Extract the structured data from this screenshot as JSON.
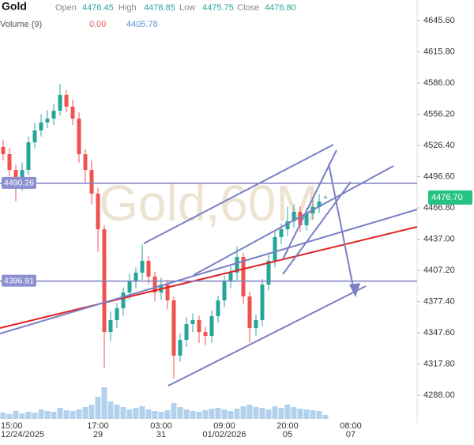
{
  "header": {
    "title": "Gold",
    "readout": [
      {
        "label": "Open",
        "value": "4476.45"
      },
      {
        "label": "High",
        "value": "4478.85"
      },
      {
        "label": "Low",
        "value": "4475.75"
      },
      {
        "label": "Close",
        "value": "4476.80"
      }
    ],
    "volume_label": "Volume (9)",
    "volume_values": [
      "0.00",
      "4405.78"
    ]
  },
  "chart_data": {
    "type": "candlestick",
    "watermark": "Gold,60M",
    "categories": [
      null,
      "15:00",
      null,
      null,
      null,
      null,
      null,
      null,
      null,
      null,
      null,
      null,
      null,
      null,
      null,
      "17:00",
      null,
      null,
      null,
      null,
      null,
      null,
      null,
      null,
      null,
      "03:00",
      null,
      null,
      null,
      null,
      null,
      null,
      null,
      null,
      null,
      "09:00",
      null,
      null,
      null,
      null,
      null,
      null,
      null,
      null,
      null,
      "20:00",
      null,
      null,
      null,
      null,
      null,
      null,
      null,
      null,
      null,
      "08:00",
      null,
      null,
      null,
      null,
      null,
      null,
      null,
      null,
      null,
      null
    ],
    "date_labels": [
      null,
      "12/24/2025",
      null,
      null,
      null,
      null,
      null,
      null,
      null,
      null,
      null,
      null,
      null,
      null,
      null,
      "29",
      null,
      null,
      null,
      null,
      null,
      null,
      null,
      null,
      null,
      "31",
      null,
      null,
      null,
      null,
      null,
      null,
      null,
      null,
      null,
      "01/02/2026",
      null,
      null,
      null,
      null,
      null,
      null,
      null,
      null,
      null,
      "05",
      null,
      null,
      null,
      null,
      null,
      null,
      null,
      null,
      null,
      "07",
      null,
      null,
      null,
      null,
      null,
      null,
      null,
      null,
      null,
      null
    ],
    "open": [
      4525,
      4518.1,
      4503,
      4487.9,
      4503,
      4529.4,
      4540.7,
      4548.3,
      4552,
      4559.6,
      4574.7,
      4563.4,
      4552,
      4518,
      4503,
      4480.4,
      4446.4,
      4348.3,
      4359.7,
      4371,
      4386,
      4397.4,
      4405,
      4416.3,
      4401.2,
      4386,
      4393.6,
      4378.5,
      4325.7,
      4340.8,
      4355.9,
      4359.7,
      4348.3,
      4344.6,
      4363.4,
      4378.5,
      4397.4,
      4405,
      4420,
      4382.3,
      4352.1,
      4359.7,
      4393.6,
      4416.3,
      4438.9,
      4446.4,
      4454,
      4463,
      4450.2,
      4461.5,
      4467.6,
      4476.45,
      null,
      null,
      null,
      null,
      null,
      null,
      null,
      null,
      null,
      null,
      null,
      null,
      null,
      null
    ],
    "high": [
      4532,
      4524,
      4508,
      4510,
      4535,
      4548,
      4556,
      4560,
      4566,
      4585,
      4579,
      4570,
      4558,
      4523,
      4512,
      4486,
      4450,
      4368,
      4376,
      4391,
      4404,
      4410,
      4432,
      4421,
      4406,
      4400,
      4398,
      4382,
      4347,
      4362,
      4366,
      4364,
      4353,
      4369,
      4383,
      4402,
      4411,
      4430,
      4424,
      4387,
      4365,
      4399,
      4422,
      4444,
      4452,
      4468,
      4470,
      4468,
      4467,
      4474,
      4480,
      4478.85,
      null,
      null,
      null,
      null,
      null,
      null,
      null,
      null,
      null,
      null,
      null,
      null,
      null,
      null
    ],
    "low": [
      4512,
      4497,
      4473,
      4483,
      4498,
      4524,
      4535,
      4543,
      4546,
      4555,
      4558,
      4546,
      4510,
      4490,
      4470,
      4425,
      4314,
      4340,
      4352,
      4364,
      4379,
      4390,
      4398,
      4394,
      4378,
      4379,
      4370,
      4304,
      4320,
      4334,
      4348,
      4338,
      4336,
      4338,
      4357,
      4372,
      4390,
      4398,
      4375,
      4338,
      4345,
      4354,
      4388,
      4410,
      4432,
      4440,
      4448,
      4444,
      4445,
      4456,
      4462,
      4475.75,
      null,
      null,
      null,
      null,
      null,
      null,
      null,
      null,
      null,
      null,
      null,
      null,
      null,
      null
    ],
    "close": [
      4518.1,
      4503,
      4487.9,
      4503,
      4529.4,
      4540.7,
      4548.3,
      4552,
      4559.6,
      4574.7,
      4563.4,
      4552,
      4518,
      4503,
      4480.4,
      4446.4,
      4348.3,
      4359.7,
      4371,
      4386,
      4397.4,
      4405,
      4416.3,
      4401.2,
      4386,
      4393.6,
      4378.5,
      4325.7,
      4340.8,
      4355.9,
      4359.7,
      4348.3,
      4344.6,
      4363.4,
      4378.5,
      4397.4,
      4405,
      4420,
      4382.3,
      4352.1,
      4359.7,
      4393.6,
      4416.3,
      4438.9,
      4446.4,
      4454,
      4463,
      4450.2,
      4461.5,
      4467.6,
      4472.9,
      4476.8,
      null,
      null,
      null,
      null,
      null,
      null,
      null,
      null,
      null,
      null,
      null,
      null,
      null,
      null
    ],
    "volume": [
      8,
      6,
      10,
      7,
      9,
      8,
      12,
      10,
      9,
      14,
      11,
      10,
      12,
      15,
      18,
      28,
      40,
      22,
      18,
      15,
      12,
      14,
      16,
      12,
      10,
      9,
      11,
      20,
      15,
      12,
      10,
      9,
      11,
      13,
      14,
      12,
      10,
      13,
      16,
      18,
      15,
      14,
      12,
      16,
      14,
      18,
      15,
      13,
      12,
      11,
      10,
      5,
      null,
      null,
      null,
      null,
      null,
      null,
      null,
      null,
      null,
      null,
      null,
      null,
      null,
      null
    ],
    "volume_lim": [
      0,
      100
    ],
    "up_color": "#26a69a",
    "down_color": "#ef5350",
    "ylim": [
      4265.37,
      4665.22
    ],
    "yticks": [
      {
        "value": 4645.6,
        "label": "4645.60"
      },
      {
        "value": 4615.8,
        "label": "4615.80"
      },
      {
        "value": 4586,
        "label": "4586.00"
      },
      {
        "value": 4556.2,
        "label": "4556.20"
      },
      {
        "value": 4526.4,
        "label": "4526.40"
      },
      {
        "value": 4496.6,
        "label": "4496.60"
      },
      {
        "value": 4466.8,
        "label": "4466.80"
      },
      {
        "value": 4437,
        "label": "4437.00"
      },
      {
        "value": 4407.2,
        "label": "4407.20"
      },
      {
        "value": 4377.4,
        "label": "4377.40"
      },
      {
        "value": 4347.6,
        "label": "4347.60"
      },
      {
        "value": 4317.8,
        "label": "4317.80"
      },
      {
        "value": 4288,
        "label": "4288.00"
      }
    ],
    "levels": [
      4490.26,
      4396.91
    ],
    "last_price": {
      "value": 4476.7,
      "label": "4476.70"
    }
  }
}
